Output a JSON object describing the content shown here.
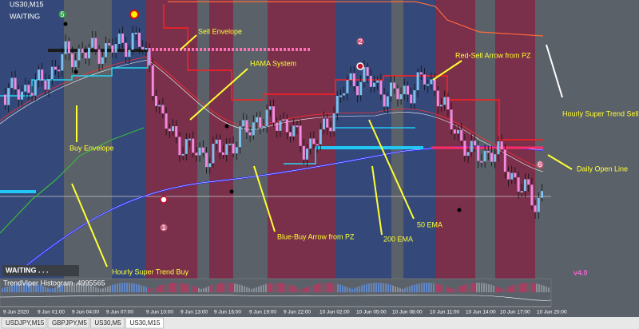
{
  "header": {
    "symbol": "US30,M15",
    "status": "WAITING"
  },
  "annotations": [
    "Sell Envelope",
    "HAMA System",
    "Red-Sell Arrow from PZ",
    "Hourly Super Trend  Sell",
    "Buy Envelope",
    "Daily Open Line",
    "50 EMA",
    "Blue-Buy Arrow from PZ",
    "200 EMA",
    "Hourly Super Trend  Buy"
  ],
  "x_axis_labels": [
    "9 Jun 2020",
    "9 Jun 01:00",
    "9 Jun 04:00",
    "9 Jun 07:00",
    "9 Jun 10:00",
    "9 Jun 13:00",
    "9 Jun 16:00",
    "9 Jun 19:00",
    "9 Jun 22:00",
    "10 Jun 02:00",
    "10 Jun 05:00",
    "10 Jun 08:00",
    "10 Jun 11:00",
    "10 Jun 14:00",
    "10 Jun 17:00",
    "10 Jun 20:00"
  ],
  "markers": [
    "5",
    "2",
    "1",
    "6"
  ],
  "waiting_badge": "WAITING . . .",
  "version": "v4.0",
  "indicator": {
    "label": "TrendViper Histogram .4995565"
  },
  "tabs": [
    "USDJPY,M15",
    "GBPJPY,M5",
    "US30,M5",
    "US30,M15"
  ]
}
